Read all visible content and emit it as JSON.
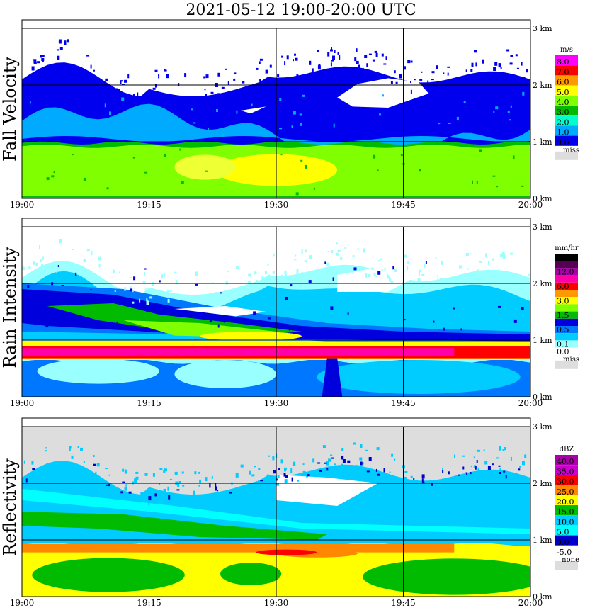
{
  "title": "2021-05-12   19:00-20:00 UTC",
  "x_tick_labels": [
    "19:00",
    "19:15",
    "19:30",
    "19:45",
    "20:00"
  ],
  "height_labels": [
    "0 km",
    "1 km",
    "2 km",
    "3 km"
  ],
  "panels": [
    {
      "title": "Fall Velocity",
      "unit": "m/s",
      "scale": [
        {
          "label": "8.0",
          "color": "#ff00ff"
        },
        {
          "label": "7.0",
          "color": "#ff0000"
        },
        {
          "label": "6.0",
          "color": "#ff9900"
        },
        {
          "label": "5.0",
          "color": "#ffff00"
        },
        {
          "label": "4.0",
          "color": "#80ff00"
        },
        {
          "label": "3.0",
          "color": "#00bb00"
        },
        {
          "label": "2.0",
          "color": "#00ffcc"
        },
        {
          "label": "1.0",
          "color": "#00aaff"
        },
        {
          "label": "0.0",
          "color": "#0000ee"
        }
      ],
      "miss_label": "miss"
    },
    {
      "title": "Rain Intensity",
      "unit": "mm/hr",
      "scale": [
        {
          "label": "48.0",
          "color": "#000000"
        },
        {
          "label": "",
          "color": "#550055"
        },
        {
          "label": "12.0",
          "color": "#aa00aa"
        },
        {
          "label": "",
          "color": "#ff00aa"
        },
        {
          "label": "6.0",
          "color": "#ff0000"
        },
        {
          "label": "",
          "color": "#ff9900"
        },
        {
          "label": "3.0",
          "color": "#ffff00"
        },
        {
          "label": "",
          "color": "#80ff00"
        },
        {
          "label": "1.5",
          "color": "#00bb00"
        },
        {
          "label": "",
          "color": "#0000dd"
        },
        {
          "label": "0.5",
          "color": "#0077ff"
        },
        {
          "label": "",
          "color": "#00ccff"
        },
        {
          "label": "0.1",
          "color": "#99ffff"
        },
        {
          "label": "0.0",
          "color": "#ffffff"
        }
      ],
      "miss_label": "miss"
    },
    {
      "title": "Reflectivity",
      "unit": "dBZ",
      "scale": [
        {
          "label": "40.0",
          "color": "#aa00aa"
        },
        {
          "label": "35.0",
          "color": "#cc00cc"
        },
        {
          "label": "30.0",
          "color": "#ff0000"
        },
        {
          "label": "25.0",
          "color": "#ff8800"
        },
        {
          "label": "20.0",
          "color": "#ffff00"
        },
        {
          "label": "15.0",
          "color": "#00bb00"
        },
        {
          "label": "10.0",
          "color": "#00ccff"
        },
        {
          "label": "5.0",
          "color": "#00ffff"
        },
        {
          "label": "0.0",
          "color": "#0000cc"
        },
        {
          "label": "-5.0",
          "color": "#ffffff"
        }
      ],
      "miss_label": "none"
    }
  ],
  "colors": {
    "missing": "#dddddd",
    "fv_blue": "#0000ee",
    "fv_light": "#00aaff",
    "fv_lime": "#80ff00",
    "fv_green": "#00bb00",
    "fv_yellow": "#ffff00",
    "ri_lightcyan": "#99ffff",
    "ri_cyan": "#00ccff",
    "ri_mid": "#0077ff",
    "ri_dark": "#0000dd",
    "ri_green": "#00bb00",
    "ri_lime": "#80ff00",
    "ri_yellow": "#ffff00",
    "ri_red": "#ff0000",
    "ri_magenta": "#ff00aa",
    "rf_cyan": "#00ccff",
    "rf_lightcyan": "#00ffff",
    "rf_green": "#00bb00",
    "rf_yellow": "#ffff00",
    "rf_orange": "#ff8800",
    "rf_red": "#ff0000",
    "rf_blue": "#0000cc"
  },
  "chart_data": [
    {
      "type": "heatmap",
      "title": "Fall Velocity",
      "unit": "m/s",
      "x_range": [
        "19:00",
        "20:00"
      ],
      "y_range_km": [
        0,
        3
      ],
      "colorbar_levels": [
        0.0,
        1.0,
        2.0,
        3.0,
        4.0,
        5.0,
        6.0,
        7.0,
        8.0
      ]
    },
    {
      "type": "heatmap",
      "title": "Rain Intensity",
      "unit": "mm/hr",
      "x_range": [
        "19:00",
        "20:00"
      ],
      "y_range_km": [
        0,
        3
      ],
      "colorbar_levels": [
        0.0,
        0.1,
        0.5,
        1.5,
        3.0,
        6.0,
        12.0,
        48.0
      ]
    },
    {
      "type": "heatmap",
      "title": "Reflectivity",
      "unit": "dBZ",
      "x_range": [
        "19:00",
        "20:00"
      ],
      "y_range_km": [
        0,
        3
      ],
      "colorbar_levels": [
        -5.0,
        0.0,
        5.0,
        10.0,
        15.0,
        20.0,
        25.0,
        30.0,
        35.0,
        40.0
      ]
    }
  ]
}
